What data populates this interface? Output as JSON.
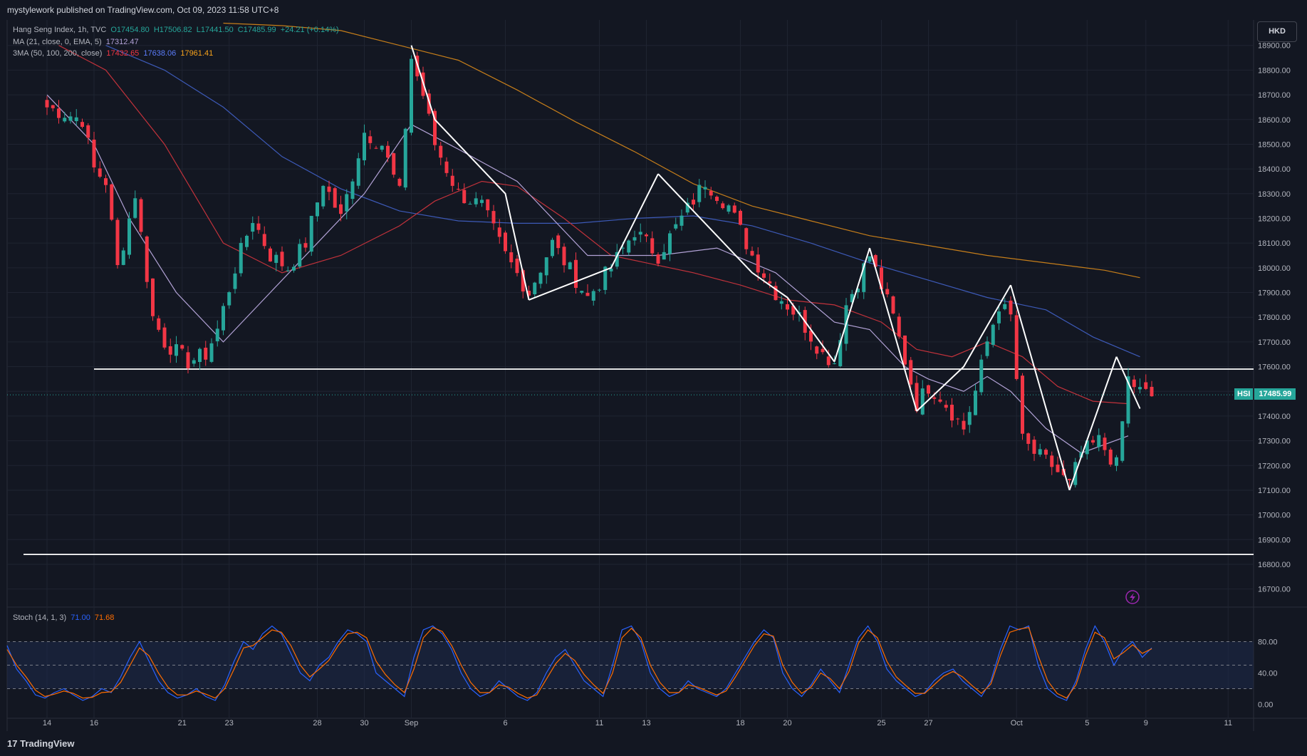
{
  "header": {
    "published": "mystylework published on TradingView.com, Oct 09, 2023 11:58 UTC+8"
  },
  "legend": {
    "main": {
      "name": "Hang Seng Index, 1h, TVC",
      "o": "O17454.80",
      "h": "H17506.82",
      "l": "L17441.50",
      "c": "C17485.99",
      "chg": "+24.21 (+0.14%)"
    },
    "ma": {
      "label": "MA (21, close, 0, EMA, 5)",
      "value": "17312.47"
    },
    "ma3": {
      "label": "3MA (50, 100, 200, close)",
      "v1": "17432.65",
      "v2": "17638.06",
      "v3": "17961.41"
    },
    "stoch": {
      "label": "Stoch (14, 1, 3)",
      "k": "71.00",
      "d": "71.68"
    }
  },
  "currency_button": "HKD",
  "last_price_badge": {
    "symbol": "HSI",
    "value": "17485.99"
  },
  "footer": {
    "brand": "TradingView"
  },
  "colors": {
    "background": "#131722",
    "up": "#26a69a",
    "down": "#f23645",
    "ma21": "#b2a2d6",
    "ma50": "#c2323b",
    "ma100": "#3d5ab8",
    "ma200": "#c67e1a",
    "stoch_k": "#2962ff",
    "stoch_d": "#ff6d00",
    "trendline": "#ffffff"
  },
  "chart_data": [
    {
      "type": "candlestick",
      "title": "Hang Seng Index, 1h, TVC",
      "ylim": [
        16650,
        18980
      ],
      "y_ticks": [
        "18900.00",
        "18800.00",
        "18700.00",
        "18600.00",
        "18500.00",
        "18400.00",
        "18300.00",
        "18200.00",
        "18100.00",
        "18000.00",
        "17900.00",
        "17800.00",
        "17700.00",
        "17600.00",
        "17500.00",
        "17400.00",
        "17300.00",
        "17200.00",
        "17100.00",
        "17000.00",
        "16900.00",
        "16800.00",
        "16700.00"
      ],
      "x_ticks": [
        "14",
        "16",
        "21",
        "23",
        "28",
        "30",
        "Sep",
        "6",
        "11",
        "13",
        "18",
        "20",
        "25",
        "27",
        "Oct",
        "5",
        "9",
        "11"
      ],
      "x_tick_pos": [
        0,
        8,
        23,
        31,
        46,
        54,
        62,
        78,
        94,
        102,
        118,
        126,
        142,
        150,
        165,
        177,
        187,
        201
      ],
      "price_path": [
        [
          0,
          18650
        ],
        [
          6,
          18600
        ],
        [
          8,
          18400
        ],
        [
          10,
          18350
        ],
        [
          12,
          18000
        ],
        [
          15,
          18300
        ],
        [
          18,
          17800
        ],
        [
          20,
          17700
        ],
        [
          24,
          17620
        ],
        [
          27,
          17650
        ],
        [
          29,
          17750
        ],
        [
          32,
          18000
        ],
        [
          35,
          18200
        ],
        [
          38,
          18050
        ],
        [
          41,
          18000
        ],
        [
          44,
          18100
        ],
        [
          47,
          18350
        ],
        [
          50,
          18200
        ],
        [
          54,
          18550
        ],
        [
          57,
          18500
        ],
        [
          60,
          18300
        ],
        [
          62,
          18850
        ],
        [
          64,
          18700
        ],
        [
          66,
          18500
        ],
        [
          70,
          18300
        ],
        [
          74,
          18250
        ],
        [
          78,
          18050
        ],
        [
          82,
          17900
        ],
        [
          86,
          18100
        ],
        [
          92,
          17880
        ],
        [
          96,
          18000
        ],
        [
          100,
          18150
        ],
        [
          104,
          18050
        ],
        [
          108,
          18200
        ],
        [
          112,
          18350
        ],
        [
          116,
          18250
        ],
        [
          120,
          18050
        ],
        [
          124,
          17900
        ],
        [
          128,
          17800
        ],
        [
          132,
          17650
        ],
        [
          134,
          17620
        ],
        [
          136,
          17850
        ],
        [
          140,
          18050
        ],
        [
          144,
          17800
        ],
        [
          148,
          17450
        ],
        [
          150,
          17520
        ],
        [
          152,
          17480
        ],
        [
          156,
          17350
        ],
        [
          158,
          17500
        ],
        [
          160,
          17700
        ],
        [
          162,
          17850
        ],
        [
          164,
          17800
        ],
        [
          166,
          17300
        ],
        [
          168,
          17250
        ],
        [
          171,
          17200
        ],
        [
          174,
          17120
        ],
        [
          176,
          17250
        ],
        [
          179,
          17300
        ],
        [
          182,
          17200
        ],
        [
          184,
          17550
        ],
        [
          186,
          17500
        ],
        [
          188,
          17480
        ]
      ],
      "trendlines": [
        [
          [
            62,
            18900
          ],
          [
            66,
            18600
          ],
          [
            78,
            18300
          ],
          [
            82,
            17870
          ]
        ],
        [
          [
            82,
            17870
          ],
          [
            96,
            18000
          ],
          [
            104,
            18380
          ]
        ],
        [
          [
            104,
            18380
          ],
          [
            120,
            17980
          ],
          [
            126,
            17880
          ],
          [
            134,
            17620
          ]
        ],
        [
          [
            134,
            17620
          ],
          [
            140,
            18080
          ]
        ],
        [
          [
            140,
            18080
          ],
          [
            148,
            17420
          ]
        ],
        [
          [
            148,
            17420
          ],
          [
            156,
            17600
          ],
          [
            164,
            17930
          ]
        ],
        [
          [
            164,
            17930
          ],
          [
            174,
            17100
          ]
        ],
        [
          [
            174,
            17100
          ],
          [
            182,
            17640
          ]
        ],
        [
          [
            182,
            17640
          ],
          [
            186,
            17430
          ]
        ]
      ],
      "horizontal_lines": [
        [
          8,
          17590
        ],
        [
          -4,
          16840
        ]
      ],
      "ma21_path": [
        [
          0,
          18700
        ],
        [
          8,
          18500
        ],
        [
          14,
          18200
        ],
        [
          22,
          17900
        ],
        [
          30,
          17700
        ],
        [
          38,
          17900
        ],
        [
          46,
          18100
        ],
        [
          54,
          18300
        ],
        [
          62,
          18580
        ],
        [
          70,
          18480
        ],
        [
          80,
          18350
        ],
        [
          92,
          18050
        ],
        [
          104,
          18050
        ],
        [
          114,
          18080
        ],
        [
          124,
          17980
        ],
        [
          134,
          17780
        ],
        [
          140,
          17750
        ],
        [
          146,
          17600
        ],
        [
          150,
          17550
        ],
        [
          156,
          17500
        ],
        [
          160,
          17560
        ],
        [
          164,
          17500
        ],
        [
          170,
          17350
        ],
        [
          176,
          17250
        ],
        [
          184,
          17320
        ]
      ],
      "ma50_path": [
        [
          2,
          18900
        ],
        [
          10,
          18800
        ],
        [
          20,
          18500
        ],
        [
          30,
          18100
        ],
        [
          40,
          17980
        ],
        [
          50,
          18050
        ],
        [
          60,
          18170
        ],
        [
          66,
          18270
        ],
        [
          74,
          18350
        ],
        [
          80,
          18330
        ],
        [
          88,
          18200
        ],
        [
          96,
          18050
        ],
        [
          102,
          18020
        ],
        [
          110,
          17980
        ],
        [
          118,
          17930
        ],
        [
          126,
          17870
        ],
        [
          134,
          17850
        ],
        [
          142,
          17780
        ],
        [
          148,
          17670
        ],
        [
          154,
          17640
        ],
        [
          160,
          17700
        ],
        [
          166,
          17640
        ],
        [
          172,
          17520
        ],
        [
          178,
          17460
        ],
        [
          184,
          17450
        ]
      ],
      "ma100_path": [
        [
          10,
          18900
        ],
        [
          20,
          18800
        ],
        [
          30,
          18650
        ],
        [
          40,
          18450
        ],
        [
          50,
          18320
        ],
        [
          60,
          18230
        ],
        [
          70,
          18190
        ],
        [
          80,
          18180
        ],
        [
          90,
          18180
        ],
        [
          100,
          18200
        ],
        [
          110,
          18210
        ],
        [
          120,
          18170
        ],
        [
          130,
          18100
        ],
        [
          140,
          18020
        ],
        [
          150,
          17950
        ],
        [
          160,
          17880
        ],
        [
          170,
          17830
        ],
        [
          178,
          17720
        ],
        [
          186,
          17640
        ]
      ],
      "ma200_path": [
        [
          30,
          18990
        ],
        [
          40,
          18980
        ],
        [
          50,
          18960
        ],
        [
          60,
          18900
        ],
        [
          70,
          18840
        ],
        [
          80,
          18720
        ],
        [
          90,
          18590
        ],
        [
          100,
          18470
        ],
        [
          110,
          18340
        ],
        [
          120,
          18250
        ],
        [
          130,
          18190
        ],
        [
          140,
          18130
        ],
        [
          150,
          18090
        ],
        [
          160,
          18050
        ],
        [
          170,
          18020
        ],
        [
          180,
          17990
        ],
        [
          186,
          17960
        ]
      ]
    },
    {
      "type": "line",
      "title": "Stoch (14, 1, 3)",
      "ylim": [
        -15,
        115
      ],
      "y_ticks": [
        "80.00",
        "40.00",
        "0.00"
      ],
      "band": [
        20,
        80
      ],
      "series": [
        {
          "name": "%K",
          "values": [
            75,
            45,
            30,
            12,
            8,
            15,
            20,
            12,
            5,
            10,
            20,
            15,
            35,
            60,
            80,
            55,
            30,
            15,
            8,
            12,
            20,
            10,
            5,
            25,
            55,
            80,
            70,
            90,
            100,
            90,
            65,
            40,
            30,
            50,
            60,
            80,
            95,
            90,
            80,
            40,
            30,
            20,
            10,
            60,
            95,
            100,
            90,
            70,
            40,
            20,
            10,
            15,
            30,
            20,
            10,
            5,
            15,
            40,
            60,
            70,
            50,
            30,
            20,
            10,
            50,
            95,
            100,
            80,
            40,
            20,
            10,
            15,
            30,
            20,
            15,
            10,
            20,
            40,
            60,
            80,
            95,
            85,
            40,
            20,
            10,
            25,
            45,
            30,
            15,
            50,
            85,
            100,
            80,
            45,
            30,
            20,
            10,
            15,
            30,
            40,
            45,
            30,
            20,
            10,
            30,
            70,
            100,
            95,
            100,
            50,
            20,
            10,
            5,
            30,
            70,
            100,
            80,
            50,
            70,
            80,
            60,
            72
          ]
        },
        {
          "name": "%D",
          "values": [
            70,
            50,
            35,
            18,
            10,
            13,
            17,
            14,
            8,
            9,
            15,
            16,
            28,
            50,
            72,
            62,
            40,
            22,
            12,
            12,
            17,
            13,
            8,
            20,
            45,
            72,
            75,
            85,
            95,
            92,
            75,
            50,
            35,
            45,
            56,
            75,
            90,
            92,
            85,
            55,
            38,
            25,
            15,
            45,
            85,
            98,
            93,
            75,
            50,
            28,
            15,
            15,
            25,
            22,
            14,
            8,
            12,
            32,
            52,
            65,
            56,
            38,
            25,
            14,
            40,
            85,
            97,
            85,
            50,
            28,
            15,
            15,
            25,
            22,
            17,
            12,
            17,
            35,
            55,
            75,
            90,
            87,
            50,
            28,
            14,
            22,
            40,
            33,
            20,
            42,
            78,
            95,
            85,
            55,
            35,
            24,
            14,
            14,
            25,
            36,
            42,
            35,
            24,
            14,
            26,
            62,
            92,
            96,
            98,
            62,
            30,
            14,
            8,
            25,
            62,
            92,
            85,
            58,
            66,
            76,
            65,
            71
          ]
        }
      ]
    }
  ]
}
